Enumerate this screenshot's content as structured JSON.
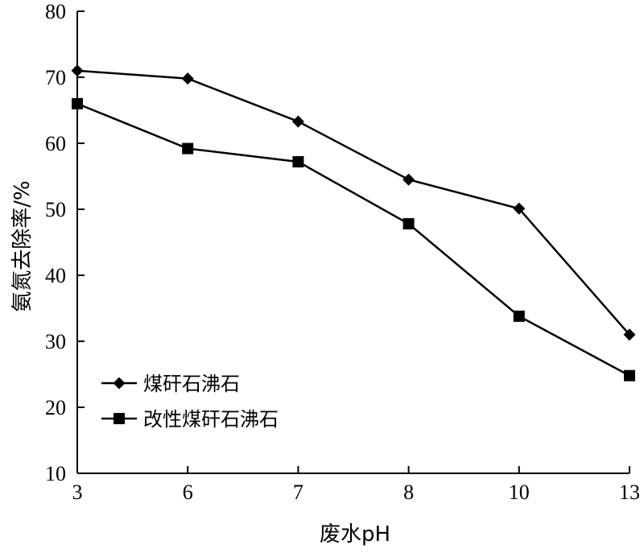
{
  "chart_data": {
    "type": "line",
    "title": "",
    "xlabel": "废水pH",
    "ylabel": "氨氮去除率/%",
    "categories": [
      "3",
      "6",
      "7",
      "8",
      "10",
      "13"
    ],
    "yticks": [
      "10",
      "20",
      "30",
      "40",
      "50",
      "60",
      "70",
      "80"
    ],
    "ylim": [
      10,
      80
    ],
    "grid": false,
    "legend_position": "bottom-left",
    "series": [
      {
        "name": "煤矸石沸石",
        "marker": "diamond",
        "color": "#000000",
        "values": [
          71,
          69.8,
          63.3,
          54.5,
          50.1,
          31
        ]
      },
      {
        "name": "改性煤矸石沸石",
        "marker": "square",
        "color": "#000000",
        "values": [
          66,
          59.2,
          57.2,
          47.8,
          33.8,
          24.8
        ]
      }
    ]
  }
}
